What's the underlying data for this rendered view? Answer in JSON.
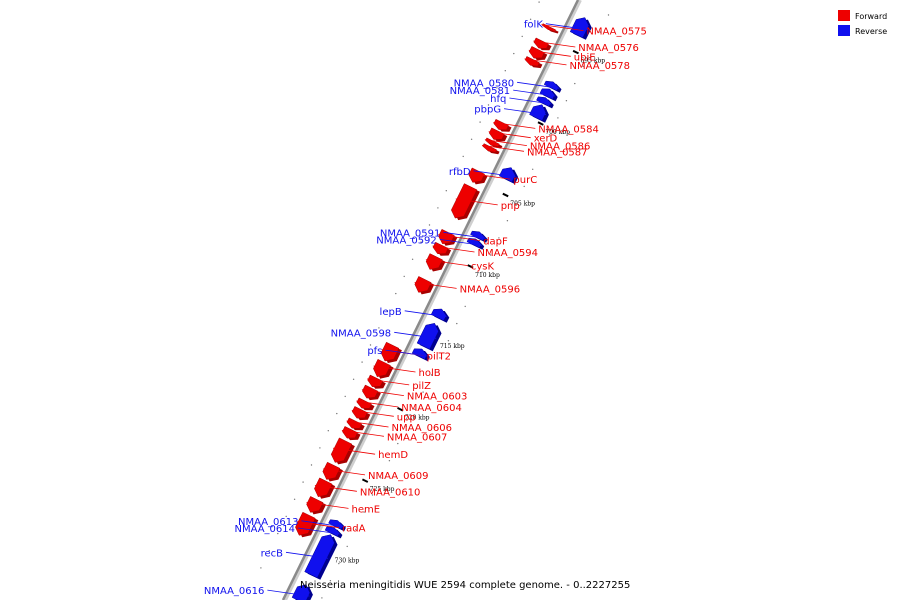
{
  "colors": {
    "forward": "#ee0000",
    "forward_dark": "#a80000",
    "reverse": "#1010ee",
    "reverse_dark": "#000090",
    "backbone": "#8a8a8a"
  },
  "legend": {
    "forward_label": "Forward",
    "reverse_label": "Reverse"
  },
  "caption": "Neisseria meningitidis WUE 2594 complete genome. - 0..2227255",
  "ticks": [
    {
      "label": "695 kbp",
      "kbp": 695
    },
    {
      "label": "700 kbp",
      "kbp": 700
    },
    {
      "label": "705 kbp",
      "kbp": 705
    },
    {
      "label": "710 kbp",
      "kbp": 710
    },
    {
      "label": "715 kbp",
      "kbp": 715
    },
    {
      "label": "720 kbp",
      "kbp": 720
    },
    {
      "label": "725 kbp",
      "kbp": 725
    },
    {
      "label": "730 kbp",
      "kbp": 730
    }
  ],
  "forward_genes": [
    {
      "name": "NMAA_0575",
      "start": 694.3,
      "end": 694.5
    },
    {
      "name": "NMAA_0576",
      "start": 695.3,
      "end": 695.8
    },
    {
      "name": "ubiE",
      "start": 695.9,
      "end": 696.5
    },
    {
      "name": "NMAA_0578",
      "start": 696.6,
      "end": 697.0
    },
    {
      "name": "NMAA_0584",
      "start": 701.0,
      "end": 701.5
    },
    {
      "name": "xerD",
      "start": 701.6,
      "end": 702.2
    },
    {
      "name": "NMAA_0586",
      "start": 702.3,
      "end": 702.6
    },
    {
      "name": "NMAA_0587",
      "start": 702.7,
      "end": 703.0
    },
    {
      "name": "purC",
      "start": 704.4,
      "end": 705.2
    },
    {
      "name": "pnp",
      "start": 705.5,
      "end": 707.7
    },
    {
      "name": "dapF",
      "start": 708.7,
      "end": 709.5
    },
    {
      "name": "NMAA_0594",
      "start": 709.6,
      "end": 710.2
    },
    {
      "name": "cysK",
      "start": 710.4,
      "end": 711.3
    },
    {
      "name": "NMAA_0596",
      "start": 712.0,
      "end": 712.9
    },
    {
      "name": "pilT2",
      "start": 716.6,
      "end": 717.7
    },
    {
      "name": "holB",
      "start": 717.8,
      "end": 718.8
    },
    {
      "name": "pilZ",
      "start": 718.9,
      "end": 719.5
    },
    {
      "name": "NMAA_0603",
      "start": 719.6,
      "end": 720.3
    },
    {
      "name": "NMAA_0604",
      "start": 720.5,
      "end": 721.0
    },
    {
      "name": "upp",
      "start": 721.1,
      "end": 721.7
    },
    {
      "name": "NMAA_0606",
      "start": 721.9,
      "end": 722.4
    },
    {
      "name": "NMAA_0607",
      "start": 722.5,
      "end": 723.1
    },
    {
      "name": "hemD",
      "start": 723.3,
      "end": 724.8
    },
    {
      "name": "NMAA_0609",
      "start": 725.0,
      "end": 726.0
    },
    {
      "name": "NMAA_0610",
      "start": 726.1,
      "end": 727.2
    },
    {
      "name": "hemE",
      "start": 727.4,
      "end": 728.3
    },
    {
      "name": "radA",
      "start": 728.5,
      "end": 729.9
    }
  ],
  "reverse_genes": [
    {
      "name": "folK",
      "start": 692.8,
      "end": 694.0
    },
    {
      "name": "NMAA_0580",
      "start": 697.3,
      "end": 697.7
    },
    {
      "name": "NMAA_0581",
      "start": 697.8,
      "end": 698.3
    },
    {
      "name": "hfq",
      "start": 698.4,
      "end": 698.8
    },
    {
      "name": "pbpG",
      "start": 698.9,
      "end": 699.8
    },
    {
      "name": "rfbD",
      "start": 703.3,
      "end": 704.1
    },
    {
      "name": "NMAA_0591",
      "start": 707.8,
      "end": 708.2
    },
    {
      "name": "NMAA_0592",
      "start": 708.3,
      "end": 708.7
    },
    {
      "name": "lepB",
      "start": 713.2,
      "end": 713.8
    },
    {
      "name": "NMAA_0598",
      "start": 714.2,
      "end": 715.8
    },
    {
      "name": "pfs",
      "start": 716.0,
      "end": 716.5
    },
    {
      "name": "NMAA_0613",
      "start": 728.0,
      "end": 728.4
    },
    {
      "name": "NMAA_0614",
      "start": 728.5,
      "end": 728.9
    },
    {
      "name": "recB",
      "start": 729.0,
      "end": 731.8
    },
    {
      "name": "NMAA_0616",
      "start": 732.5,
      "end": 733.6
    }
  ]
}
